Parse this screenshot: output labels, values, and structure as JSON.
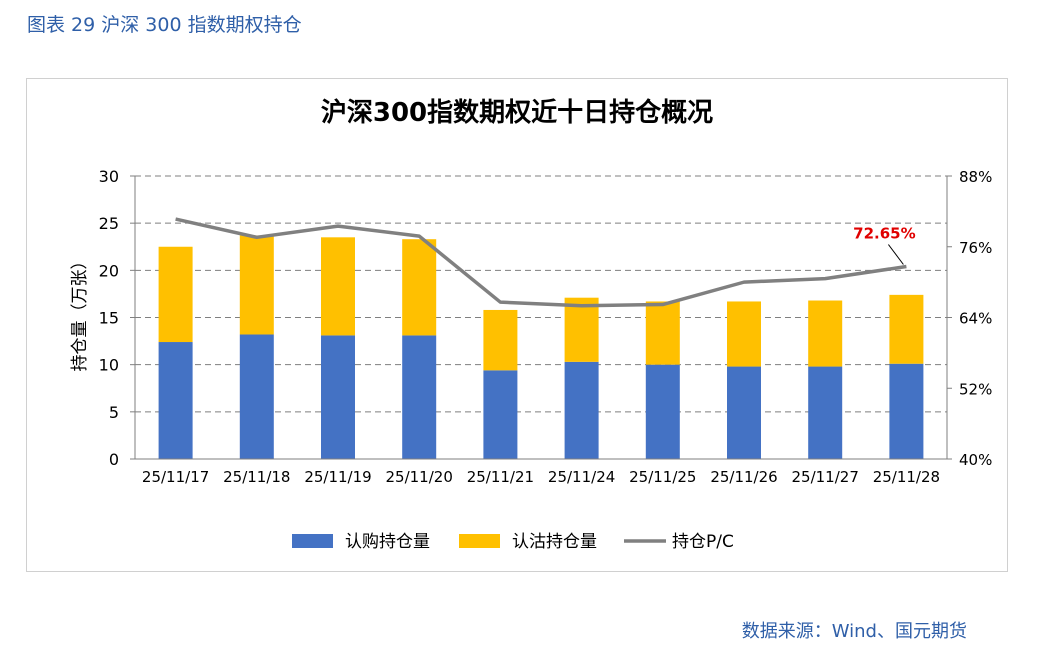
{
  "figure_caption": "图表 29 沪深 300 指数期权持仓",
  "source_note": "数据来源：Wind、国元期货",
  "colors": {
    "call": "#4472c4",
    "put": "#ffc000",
    "pc": "#808080",
    "annotation": "#e00000",
    "caption": "#2f5fa8"
  },
  "chart_data": {
    "type": "bar",
    "title": "沪深300指数期权近十日持仓概况",
    "ylabel": "持仓量（万张）",
    "xlabel": "",
    "categories": [
      "25/11/17",
      "25/11/18",
      "25/11/19",
      "25/11/20",
      "25/11/21",
      "25/11/24",
      "25/11/25",
      "25/11/26",
      "25/11/27",
      "25/11/28"
    ],
    "ylim": [
      0,
      30
    ],
    "yticks": [
      "0",
      "5",
      "10",
      "15",
      "20",
      "25",
      "30"
    ],
    "y2lim": [
      0.4,
      0.88
    ],
    "y2ticks": [
      "40%",
      "52%",
      "64%",
      "76%",
      "88%"
    ],
    "stacked": true,
    "series": [
      {
        "name": "认购持仓量",
        "type": "bar",
        "axis": "left",
        "values": [
          12.4,
          13.2,
          13.1,
          13.1,
          9.4,
          10.3,
          10.0,
          9.8,
          9.8,
          10.1
        ]
      },
      {
        "name": "认沽持仓量",
        "type": "bar",
        "axis": "left",
        "values": [
          10.1,
          10.5,
          10.4,
          10.2,
          6.4,
          6.8,
          6.7,
          6.9,
          7.0,
          7.3
        ]
      },
      {
        "name": "持仓P/C",
        "type": "line",
        "axis": "right",
        "values": [
          0.807,
          0.776,
          0.795,
          0.778,
          0.666,
          0.66,
          0.662,
          0.7,
          0.706,
          0.7265
        ]
      }
    ],
    "annotation": {
      "text": "72.65%",
      "index": 9
    },
    "legend_position": "bottom",
    "grid": true
  }
}
